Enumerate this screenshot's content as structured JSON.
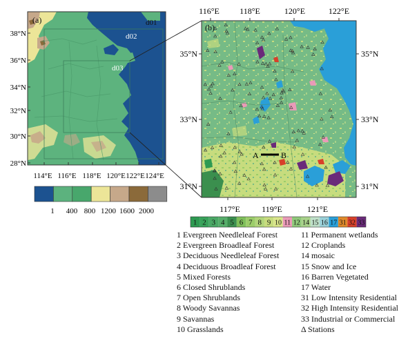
{
  "panel_a": {
    "label": "(a)",
    "domain_labels": [
      "d01",
      "d02",
      "d03"
    ],
    "lat_labels": [
      "38°N",
      "36°N",
      "34°N",
      "32°N",
      "30°N",
      "28°N"
    ],
    "lon_labels": [
      "114°E",
      "116°E",
      "118°E",
      "120°E",
      "122°E",
      "124°E"
    ]
  },
  "elevation_colorbar": {
    "colors": [
      "#1c5290",
      "#5cb27e",
      "#48a76c",
      "#ece598",
      "#c6a88a",
      "#8b6a3a",
      "#8c8c8c"
    ],
    "ticks": [
      "1",
      "400",
      "800",
      "1200",
      "1600",
      "2000"
    ]
  },
  "panel_b": {
    "label": "(b)",
    "top_lon_labels": [
      "116°E",
      "118°E",
      "120°E",
      "122°E"
    ],
    "bottom_lon_labels": [
      "117°E",
      "119°E",
      "121°E"
    ],
    "left_lat_labels": [
      "35°N",
      "33°N",
      "31°N"
    ],
    "right_lat_labels": [
      "35°N",
      "33°N",
      "31°N"
    ],
    "transect_start": "A",
    "transect_end": "B"
  },
  "landuse_colorbar": {
    "items": [
      {
        "code": "1",
        "color": "#2e9a52"
      },
      {
        "code": "2",
        "color": "#38a25a"
      },
      {
        "code": "3",
        "color": "#4aa865"
      },
      {
        "code": "4",
        "color": "#56ad6a"
      },
      {
        "code": "5",
        "color": "#3b8f4e"
      },
      {
        "code": "6",
        "color": "#7fbf5a"
      },
      {
        "code": "7",
        "color": "#9ccd6a"
      },
      {
        "code": "8",
        "color": "#b2d57a"
      },
      {
        "code": "9",
        "color": "#c7dc7e"
      },
      {
        "code": "10",
        "color": "#d9e58a"
      },
      {
        "code": "11",
        "color": "#ea9ab8"
      },
      {
        "code": "12",
        "color": "#8fc87a"
      },
      {
        "code": "14",
        "color": "#a8d28a"
      },
      {
        "code": "15",
        "color": "#bfe0c9"
      },
      {
        "code": "16",
        "color": "#9ad0d8"
      },
      {
        "code": "17",
        "color": "#2a9fd8"
      },
      {
        "code": "31",
        "color": "#e08a2a"
      },
      {
        "code": "32",
        "color": "#d8402a"
      },
      {
        "code": "33",
        "color": "#6a2a7a"
      }
    ]
  },
  "landuse_legend": {
    "col1": [
      "1 Evergreen Needleleaf Forest",
      "2 Evergreen Broadleaf Forest",
      "3 Deciduous Needleleaf Forest",
      "4 Deciduous Broadleaf Forest",
      "5 Mixed Forests",
      "6 Closed Shrublands",
      "7 Open Shrublands",
      "8 Woody Savannas",
      "9 Savannas",
      "10 Grasslands"
    ],
    "col2": [
      "11 Permanent wetlands",
      "12 Croplands",
      "14 mosaic",
      "15 Snow and Ice",
      "16 Barren Vegetated",
      "17 Water",
      "31 Low Intensity Residential",
      "32 High Intensity Residential",
      "33 Industrial or Commercial",
      "Δ Stations"
    ]
  }
}
